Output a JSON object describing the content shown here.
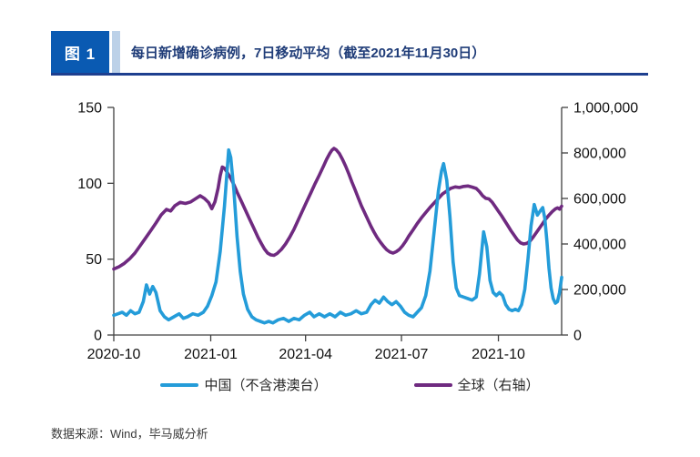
{
  "figure": {
    "tag": "图 1",
    "title": "每日新增确诊病例，7日移动平均（截至2021年11月30日）",
    "source": "数据来源：Wind，毕马威分析"
  },
  "colors": {
    "tag_bg": "#0a5ab2",
    "tag_strip": "#bcd1e8",
    "title_text": "#1f3c78",
    "header_border": "#1e3f8f",
    "axis": "#404040",
    "china_line": "#249cd9",
    "global_line": "#6f2a80"
  },
  "chart_data": {
    "type": "line",
    "title": "每日新增确诊病例，7日移动平均（截至2021年11月30日）",
    "x_unit": "days since 2020-10-01",
    "x_max": 425,
    "grid": false,
    "legend_position": "bottom",
    "xticks": [
      {
        "day": 0,
        "label": "2020-10"
      },
      {
        "day": 92,
        "label": "2021-01"
      },
      {
        "day": 182,
        "label": "2021-04"
      },
      {
        "day": 273,
        "label": "2021-07"
      },
      {
        "day": 365,
        "label": "2021-10"
      }
    ],
    "left_axis": {
      "min": 0,
      "max": 150,
      "tick_labels": [
        "0",
        "50",
        "100",
        "150"
      ],
      "tick_values": [
        0,
        50,
        100,
        150
      ]
    },
    "right_axis": {
      "min": 0,
      "max": 1000000,
      "tick_labels": [
        "0",
        "200,000",
        "400,000",
        "600,000",
        "800,000",
        "1,000,000"
      ],
      "tick_values": [
        0,
        200000,
        400000,
        600000,
        800000,
        1000000
      ]
    },
    "series": [
      {
        "name": "中国（不含港澳台）",
        "axis": "left",
        "color": "#249cd9",
        "points": [
          [
            0,
            13
          ],
          [
            4,
            14
          ],
          [
            8,
            15
          ],
          [
            12,
            13
          ],
          [
            16,
            16
          ],
          [
            20,
            14
          ],
          [
            24,
            15
          ],
          [
            28,
            22
          ],
          [
            31,
            33
          ],
          [
            34,
            27
          ],
          [
            37,
            32
          ],
          [
            40,
            28
          ],
          [
            44,
            16
          ],
          [
            48,
            12
          ],
          [
            52,
            10
          ],
          [
            57,
            12
          ],
          [
            62,
            14
          ],
          [
            66,
            11
          ],
          [
            70,
            12
          ],
          [
            75,
            14
          ],
          [
            80,
            13
          ],
          [
            85,
            15
          ],
          [
            89,
            19
          ],
          [
            93,
            26
          ],
          [
            97,
            35
          ],
          [
            101,
            55
          ],
          [
            105,
            85
          ],
          [
            109,
            122
          ],
          [
            111,
            117
          ],
          [
            114,
            95
          ],
          [
            117,
            65
          ],
          [
            120,
            42
          ],
          [
            123,
            27
          ],
          [
            127,
            17
          ],
          [
            131,
            12
          ],
          [
            135,
            10
          ],
          [
            139,
            9
          ],
          [
            143,
            8
          ],
          [
            147,
            9
          ],
          [
            151,
            8
          ],
          [
            156,
            10
          ],
          [
            161,
            11
          ],
          [
            166,
            9
          ],
          [
            171,
            11
          ],
          [
            176,
            10
          ],
          [
            181,
            13
          ],
          [
            186,
            15
          ],
          [
            190,
            12
          ],
          [
            195,
            14
          ],
          [
            200,
            12
          ],
          [
            205,
            14
          ],
          [
            210,
            12
          ],
          [
            215,
            15
          ],
          [
            220,
            13
          ],
          [
            225,
            14
          ],
          [
            230,
            16
          ],
          [
            235,
            14
          ],
          [
            240,
            15
          ],
          [
            244,
            20
          ],
          [
            248,
            23
          ],
          [
            252,
            21
          ],
          [
            256,
            25
          ],
          [
            260,
            22
          ],
          [
            264,
            20
          ],
          [
            268,
            22
          ],
          [
            272,
            19
          ],
          [
            276,
            15
          ],
          [
            280,
            13
          ],
          [
            284,
            12
          ],
          [
            288,
            15
          ],
          [
            292,
            18
          ],
          [
            296,
            26
          ],
          [
            300,
            42
          ],
          [
            304,
            68
          ],
          [
            308,
            95
          ],
          [
            311,
            108
          ],
          [
            313,
            113
          ],
          [
            316,
            102
          ],
          [
            319,
            78
          ],
          [
            322,
            48
          ],
          [
            325,
            31
          ],
          [
            328,
            26
          ],
          [
            332,
            25
          ],
          [
            336,
            24
          ],
          [
            340,
            23
          ],
          [
            344,
            25
          ],
          [
            347,
            40
          ],
          [
            351,
            68
          ],
          [
            354,
            58
          ],
          [
            357,
            36
          ],
          [
            360,
            28
          ],
          [
            363,
            26
          ],
          [
            366,
            28
          ],
          [
            369,
            26
          ],
          [
            372,
            20
          ],
          [
            375,
            17
          ],
          [
            378,
            16
          ],
          [
            381,
            17
          ],
          [
            384,
            16
          ],
          [
            387,
            20
          ],
          [
            390,
            30
          ],
          [
            393,
            50
          ],
          [
            396,
            72
          ],
          [
            399,
            86
          ],
          [
            402,
            79
          ],
          [
            405,
            82
          ],
          [
            407,
            84
          ],
          [
            409,
            77
          ],
          [
            411,
            62
          ],
          [
            413,
            44
          ],
          [
            415,
            31
          ],
          [
            417,
            24
          ],
          [
            419,
            21
          ],
          [
            421,
            22
          ],
          [
            423,
            28
          ],
          [
            425,
            38
          ]
        ]
      },
      {
        "name": "全球（右轴）",
        "axis": "right",
        "color": "#6f2a80",
        "points": [
          [
            0,
            290000
          ],
          [
            5,
            300000
          ],
          [
            10,
            315000
          ],
          [
            15,
            335000
          ],
          [
            20,
            360000
          ],
          [
            25,
            392000
          ],
          [
            30,
            425000
          ],
          [
            35,
            458000
          ],
          [
            40,
            492000
          ],
          [
            45,
            528000
          ],
          [
            50,
            552000
          ],
          [
            54,
            545000
          ],
          [
            58,
            568000
          ],
          [
            63,
            583000
          ],
          [
            68,
            578000
          ],
          [
            73,
            585000
          ],
          [
            78,
            600000
          ],
          [
            82,
            612000
          ],
          [
            86,
            600000
          ],
          [
            90,
            582000
          ],
          [
            93,
            555000
          ],
          [
            96,
            585000
          ],
          [
            99,
            645000
          ],
          [
            101,
            700000
          ],
          [
            103,
            738000
          ],
          [
            105,
            733000
          ],
          [
            108,
            712000
          ],
          [
            111,
            688000
          ],
          [
            114,
            660000
          ],
          [
            117,
            628000
          ],
          [
            121,
            588000
          ],
          [
            125,
            548000
          ],
          [
            129,
            508000
          ],
          [
            133,
            468000
          ],
          [
            137,
            428000
          ],
          [
            140,
            402000
          ],
          [
            143,
            378000
          ],
          [
            146,
            360000
          ],
          [
            149,
            352000
          ],
          [
            152,
            350000
          ],
          [
            155,
            358000
          ],
          [
            159,
            376000
          ],
          [
            163,
            400000
          ],
          [
            167,
            430000
          ],
          [
            171,
            465000
          ],
          [
            175,
            505000
          ],
          [
            179,
            545000
          ],
          [
            183,
            585000
          ],
          [
            187,
            625000
          ],
          [
            191,
            665000
          ],
          [
            195,
            702000
          ],
          [
            199,
            742000
          ],
          [
            202,
            772000
          ],
          [
            205,
            798000
          ],
          [
            207,
            812000
          ],
          [
            209,
            820000
          ],
          [
            211,
            814000
          ],
          [
            214,
            798000
          ],
          [
            217,
            772000
          ],
          [
            220,
            742000
          ],
          [
            223,
            708000
          ],
          [
            226,
            672000
          ],
          [
            229,
            638000
          ],
          [
            232,
            602000
          ],
          [
            235,
            568000
          ],
          [
            238,
            538000
          ],
          [
            241,
            508000
          ],
          [
            244,
            478000
          ],
          [
            247,
            452000
          ],
          [
            250,
            428000
          ],
          [
            253,
            408000
          ],
          [
            256,
            390000
          ],
          [
            259,
            375000
          ],
          [
            262,
            365000
          ],
          [
            265,
            360000
          ],
          [
            268,
            366000
          ],
          [
            271,
            376000
          ],
          [
            274,
            392000
          ],
          [
            277,
            412000
          ],
          [
            280,
            435000
          ],
          [
            284,
            462000
          ],
          [
            288,
            490000
          ],
          [
            292,
            515000
          ],
          [
            296,
            538000
          ],
          [
            300,
            560000
          ],
          [
            304,
            580000
          ],
          [
            308,
            600000
          ],
          [
            312,
            620000
          ],
          [
            316,
            633000
          ],
          [
            320,
            645000
          ],
          [
            324,
            651000
          ],
          [
            328,
            648000
          ],
          [
            332,
            653000
          ],
          [
            336,
            655000
          ],
          [
            340,
            650000
          ],
          [
            344,
            644000
          ],
          [
            347,
            630000
          ],
          [
            350,
            612000
          ],
          [
            353,
            601000
          ],
          [
            356,
            598000
          ],
          [
            359,
            584000
          ],
          [
            362,
            564000
          ],
          [
            365,
            544000
          ],
          [
            368,
            524000
          ],
          [
            371,
            502000
          ],
          [
            374,
            480000
          ],
          [
            377,
            458000
          ],
          [
            380,
            438000
          ],
          [
            383,
            418000
          ],
          [
            386,
            405000
          ],
          [
            389,
            400000
          ],
          [
            392,
            403000
          ],
          [
            395,
            413000
          ],
          [
            398,
            430000
          ],
          [
            401,
            450000
          ],
          [
            404,
            470000
          ],
          [
            407,
            490000
          ],
          [
            410,
            510000
          ],
          [
            413,
            527000
          ],
          [
            416,
            542000
          ],
          [
            419,
            554000
          ],
          [
            421,
            559000
          ],
          [
            423,
            553000
          ],
          [
            425,
            566000
          ]
        ]
      }
    ]
  }
}
